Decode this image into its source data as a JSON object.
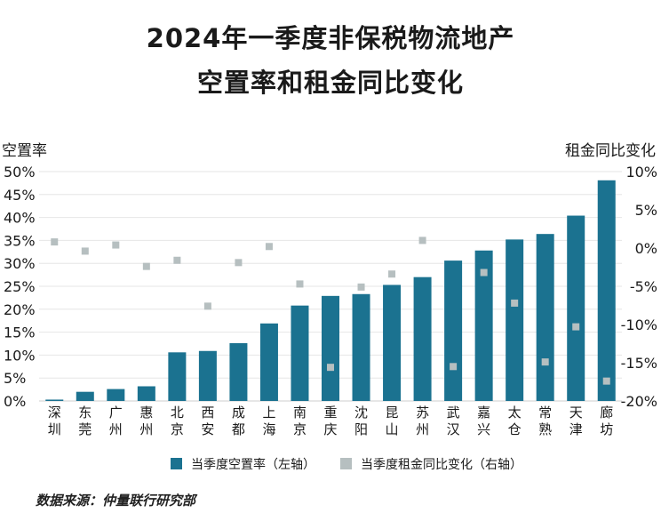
{
  "chart_data": {
    "type": "bar",
    "title_line1": "2024年一季度非保税物流地产",
    "title_line2": "空置率和租金同比变化",
    "ylabel_left": "空置率",
    "ylabel_right": "租金同比变化",
    "categories": [
      "深圳",
      "东莞",
      "广州",
      "惠州",
      "北京",
      "西安",
      "成都",
      "上海",
      "南京",
      "重庆",
      "沈阳",
      "昆山",
      "苏州",
      "武汉",
      "嘉兴",
      "太仓",
      "常熟",
      "天津",
      "廊坊"
    ],
    "series": [
      {
        "name": "当季度空置率（左轴）",
        "axis": "left",
        "kind": "bar",
        "color": "#1b7290",
        "values": [
          0.3,
          2.0,
          2.6,
          3.2,
          10.6,
          10.9,
          12.6,
          16.9,
          20.8,
          22.9,
          23.3,
          25.3,
          27.0,
          30.6,
          32.8,
          35.2,
          36.4,
          40.4,
          48.1
        ]
      },
      {
        "name": "当季度租金同比变化（右轴）",
        "axis": "right",
        "kind": "marker",
        "color": "#b6bfc0",
        "values": [
          0.8,
          -0.4,
          0.4,
          -2.4,
          -1.6,
          -7.6,
          -1.9,
          0.2,
          -4.7,
          -15.6,
          -5.1,
          -3.4,
          1.0,
          -15.5,
          -3.2,
          -7.2,
          -14.9,
          -10.3,
          -17.4
        ]
      }
    ],
    "ylim_left": [
      0,
      50
    ],
    "yticks_left": [
      "0%",
      "5%",
      "10%",
      "15%",
      "20%",
      "25%",
      "30%",
      "35%",
      "40%",
      "45%",
      "50%"
    ],
    "ylim_right": [
      -20,
      10
    ],
    "yticks_right": [
      "-20%",
      "-15%",
      "-10%",
      "-5%",
      "0%",
      "5%",
      "10%"
    ],
    "legend_position": "bottom",
    "grid": true
  },
  "source": "数据来源：仲量联行研究部",
  "colors": {
    "bar": "#1b7290",
    "marker": "#b6bfc0",
    "grid": "#e6e6e6"
  }
}
